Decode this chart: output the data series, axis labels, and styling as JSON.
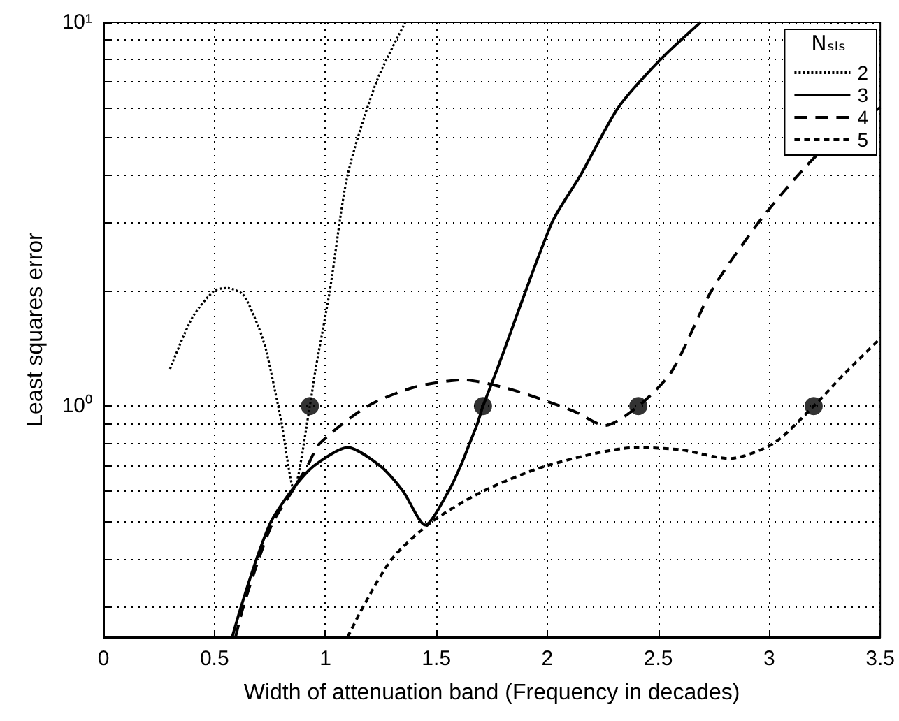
{
  "chart_data": {
    "type": "line",
    "xlabel": "Width of attenuation band (Frequency in decades)",
    "ylabel": "Least squares error",
    "legend_title": "Nₛₗₛ",
    "legend": "top right",
    "grid": true,
    "log": "y",
    "marker": "none",
    "xlim": [
      0,
      3.5
    ],
    "xticks": [
      0,
      0.5,
      1,
      1.5,
      2,
      2.5,
      3,
      3.5
    ],
    "ylim": [
      0.25,
      10
    ],
    "yticks": [
      {
        "value": 0.3,
        "label": null
      },
      {
        "value": 0.4,
        "label": null
      },
      {
        "value": 0.5,
        "label": null
      },
      {
        "value": 0.6,
        "label": null
      },
      {
        "value": 0.7,
        "label": null
      },
      {
        "value": 0.8,
        "label": null
      },
      {
        "value": 0.9,
        "label": null
      },
      {
        "value": 1,
        "label": "10⁰"
      },
      {
        "value": 2,
        "label": null
      },
      {
        "value": 3,
        "label": null
      },
      {
        "value": 4,
        "label": null
      },
      {
        "value": 5,
        "label": null
      },
      {
        "value": 6,
        "label": null
      },
      {
        "value": 7,
        "label": null
      },
      {
        "value": 8,
        "label": null
      },
      {
        "value": 9,
        "label": null
      },
      {
        "value": 10,
        "label": "10¹"
      }
    ],
    "series": [
      {
        "name": "2",
        "color": "#000000",
        "line_style": "dotted",
        "x": [
          0.3,
          0.4,
          0.5,
          0.56,
          0.63,
          0.7,
          0.734,
          0.8,
          0.858,
          0.93,
          0.954,
          1.02,
          1.1,
          1.23,
          1.36
        ],
        "values": [
          1.25,
          1.7,
          2.0,
          2.03,
          1.95,
          1.6,
          1.39,
          0.92,
          0.608,
          1.0,
          1.23,
          2.0,
          4.0,
          7.0,
          10
        ]
      },
      {
        "name": "3",
        "color": "#000000",
        "line_style": "solid",
        "x": [
          0.58,
          0.62,
          0.69,
          0.755,
          0.845,
          0.95,
          1.1,
          1.245,
          1.35,
          1.45,
          1.555,
          1.61,
          1.65,
          1.685,
          1.71,
          1.77,
          2.02,
          2.15,
          2.32,
          2.51,
          2.69
        ],
        "values": [
          0.25,
          0.3,
          0.4,
          0.5,
          0.6,
          0.7,
          0.78,
          0.7,
          0.6,
          0.49,
          0.6,
          0.7,
          0.8,
          0.9,
          1.0,
          1.23,
          3.0,
          4.0,
          6.0,
          8.0,
          10
        ]
      },
      {
        "name": "4",
        "color": "#000000",
        "line_style": "dashed",
        "x": [
          0.595,
          0.63,
          0.7,
          0.765,
          0.858,
          0.92,
          0.975,
          1.19,
          1.4,
          1.62,
          1.85,
          2.12,
          2.26,
          2.41,
          2.56,
          2.74,
          2.95,
          3.13,
          3.28,
          3.5
        ],
        "values": [
          0.25,
          0.3,
          0.4,
          0.5,
          0.61,
          0.7,
          0.8,
          1.0,
          1.12,
          1.17,
          1.1,
          0.97,
          0.89,
          1.0,
          1.23,
          2.0,
          3.0,
          4.0,
          4.9,
          6.0
        ]
      },
      {
        "name": "5",
        "color": "#000000",
        "line_style": "dashed",
        "x": [
          1.1,
          1.17,
          1.3,
          1.48,
          1.71,
          2.0,
          2.4,
          2.6,
          2.82,
          3.02,
          3.2,
          3.33,
          3.5
        ],
        "values": [
          0.25,
          0.3,
          0.4,
          0.5,
          0.6,
          0.7,
          0.78,
          0.77,
          0.73,
          0.8,
          1.0,
          1.2,
          1.5
        ]
      },
      {
        "type": "scatter",
        "marker": "circle",
        "color": "#000000",
        "x": [
          0.93,
          1.71,
          2.41,
          3.2
        ],
        "values": [
          1,
          1,
          1,
          1
        ]
      }
    ]
  }
}
